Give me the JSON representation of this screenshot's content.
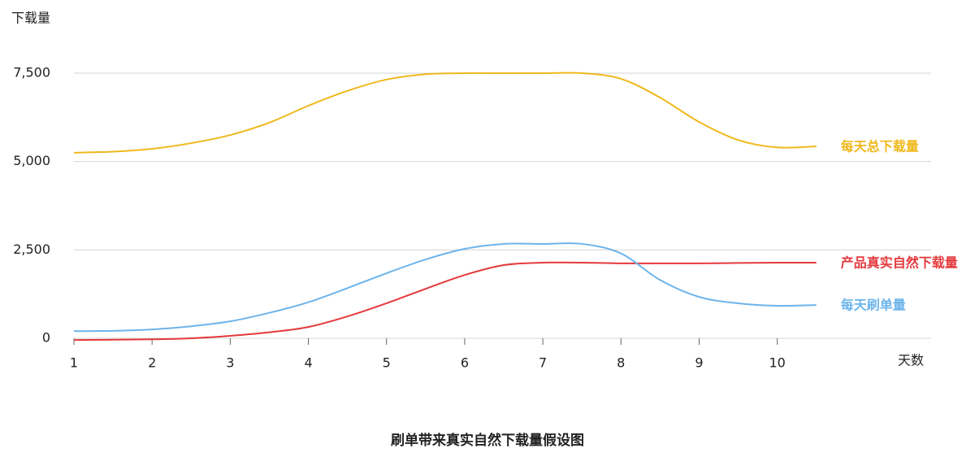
{
  "chart_data": {
    "type": "line",
    "title": "刷单带来真实自然下载量假设图",
    "y_label": "下载量",
    "x_label": "天数",
    "x": [
      1,
      1.5,
      2,
      2.5,
      3,
      3.5,
      4,
      4.5,
      5,
      5.5,
      6,
      6.5,
      7,
      7.5,
      8,
      8.5,
      9,
      9.5,
      10,
      10.5
    ],
    "series": [
      {
        "name": "每天总下载量",
        "color": "#f0b81c",
        "values": [
          5250,
          5280,
          5360,
          5520,
          5750,
          6100,
          6580,
          7000,
          7320,
          7470,
          7500,
          7500,
          7500,
          7500,
          7340,
          6810,
          6120,
          5610,
          5400,
          5430
        ]
      },
      {
        "name": "产品真实自然下载量",
        "color": "#e4393c",
        "values": [
          -50,
          -40,
          -30,
          0,
          70,
          170,
          320,
          620,
          990,
          1400,
          1790,
          2070,
          2140,
          2140,
          2120,
          2120,
          2120,
          2130,
          2140,
          2140
        ]
      },
      {
        "name": "每天刷单量",
        "color": "#6cb4ec",
        "values": [
          200,
          210,
          250,
          340,
          480,
          720,
          1020,
          1420,
          1840,
          2230,
          2530,
          2670,
          2670,
          2670,
          2400,
          1650,
          1170,
          990,
          920,
          940
        ]
      }
    ],
    "xlim": [
      1,
      12
    ],
    "xticks": [
      1,
      2,
      3,
      4,
      5,
      6,
      7,
      8,
      9,
      10
    ],
    "ylim": [
      0,
      7500
    ],
    "yticks": [
      0,
      {
        "value": 2500,
        "label": "2,500"
      },
      {
        "value": 5000,
        "label": "5,000"
      },
      {
        "value": 7500,
        "label": "7,500"
      }
    ],
    "grid": true
  }
}
